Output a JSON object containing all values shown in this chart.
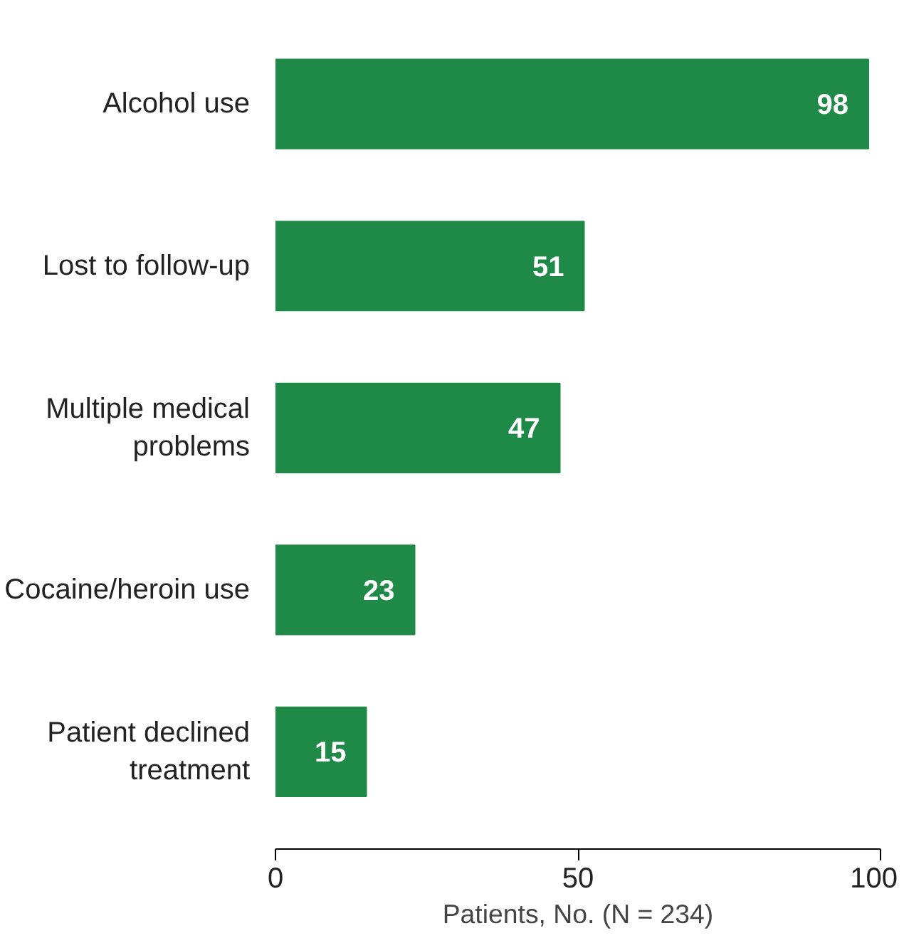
{
  "chart_data": {
    "type": "bar",
    "orientation": "horizontal",
    "categories": [
      "Alcohol use",
      "Lost to follow-up",
      "Multiple medical\nproblems",
      "Cocaine/heroin use",
      "Patient declined\ntreatment"
    ],
    "values": [
      98,
      51,
      47,
      23,
      15
    ],
    "color": "#1f8a47",
    "xlim": [
      0,
      100
    ],
    "xticks": [
      0,
      50,
      100
    ],
    "xlabel": "Patients, No. (N = 234)",
    "data_labels": true,
    "grid": false
  }
}
